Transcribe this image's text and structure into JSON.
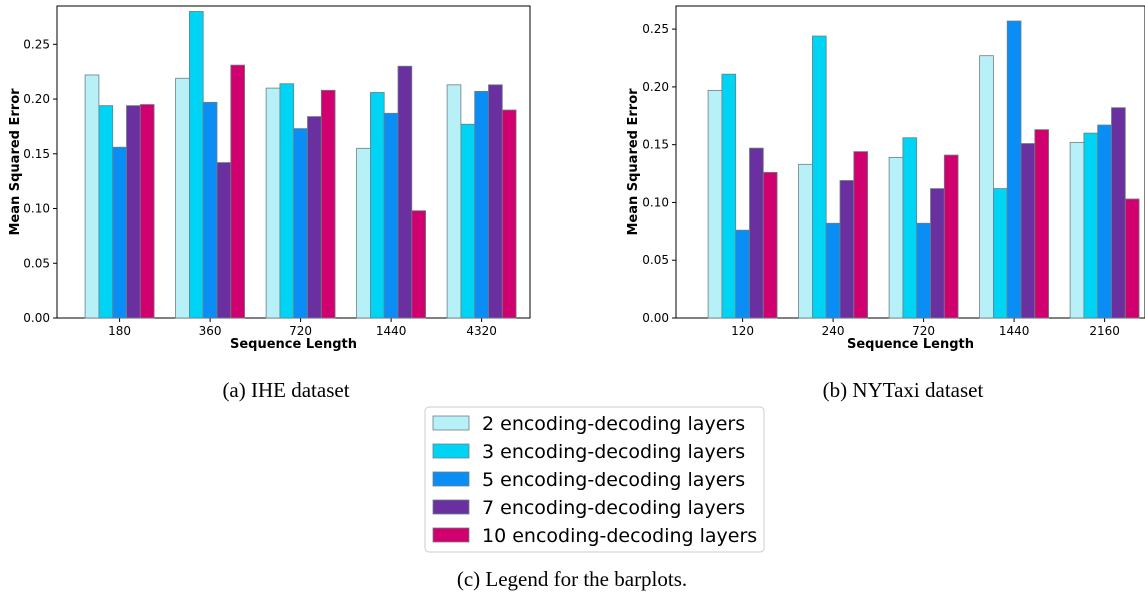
{
  "series_colors": [
    "#b8f0f8",
    "#00d4f5",
    "#0a8ef5",
    "#6a30a0",
    "#d0006f"
  ],
  "chart_data": [
    {
      "type": "bar",
      "caption": "(a) IHE dataset",
      "xlabel": "Sequence Length",
      "ylabel": "Mean Squared Error",
      "ylim": [
        0,
        0.285
      ],
      "yticks": [
        "0.00",
        "0.05",
        "0.10",
        "0.15",
        "0.20",
        "0.25"
      ],
      "categories": [
        "180",
        "360",
        "720",
        "1440",
        "4320"
      ],
      "series": [
        {
          "name": "2 encoding-decoding layers",
          "values": [
            0.222,
            0.219,
            0.21,
            0.155,
            0.213
          ]
        },
        {
          "name": "3 encoding-decoding layers",
          "values": [
            0.194,
            0.28,
            0.214,
            0.206,
            0.177
          ]
        },
        {
          "name": "5 encoding-decoding layers",
          "values": [
            0.156,
            0.197,
            0.173,
            0.187,
            0.207
          ]
        },
        {
          "name": "7 encoding-decoding layers",
          "values": [
            0.194,
            0.142,
            0.184,
            0.23,
            0.213
          ]
        },
        {
          "name": "10 encoding-decoding layers",
          "values": [
            0.195,
            0.231,
            0.208,
            0.098,
            0.19
          ]
        }
      ],
      "grid": false
    },
    {
      "type": "bar",
      "caption": "(b) NYTaxi dataset",
      "xlabel": "Sequence Length",
      "ylabel": "Mean Squared Error",
      "ylim": [
        0,
        0.27
      ],
      "yticks": [
        "0.00",
        "0.05",
        "0.10",
        "0.15",
        "0.20",
        "0.25"
      ],
      "categories": [
        "120",
        "240",
        "720",
        "1440",
        "2160"
      ],
      "series": [
        {
          "name": "2 encoding-decoding layers",
          "values": [
            0.197,
            0.133,
            0.139,
            0.227,
            0.152
          ]
        },
        {
          "name": "3 encoding-decoding layers",
          "values": [
            0.211,
            0.244,
            0.156,
            0.112,
            0.16
          ]
        },
        {
          "name": "5 encoding-decoding layers",
          "values": [
            0.076,
            0.082,
            0.082,
            0.257,
            0.167
          ]
        },
        {
          "name": "7 encoding-decoding layers",
          "values": [
            0.147,
            0.119,
            0.112,
            0.151,
            0.182
          ]
        },
        {
          "name": "10 encoding-decoding layers",
          "values": [
            0.126,
            0.144,
            0.141,
            0.163,
            0.103
          ]
        }
      ],
      "grid": false
    }
  ],
  "legend": {
    "caption": "(c) Legend for the barplots.",
    "items": [
      "2 encoding-decoding layers",
      "3 encoding-decoding layers",
      "5 encoding-decoding layers",
      "7 encoding-decoding layers",
      "10 encoding-decoding layers"
    ]
  }
}
